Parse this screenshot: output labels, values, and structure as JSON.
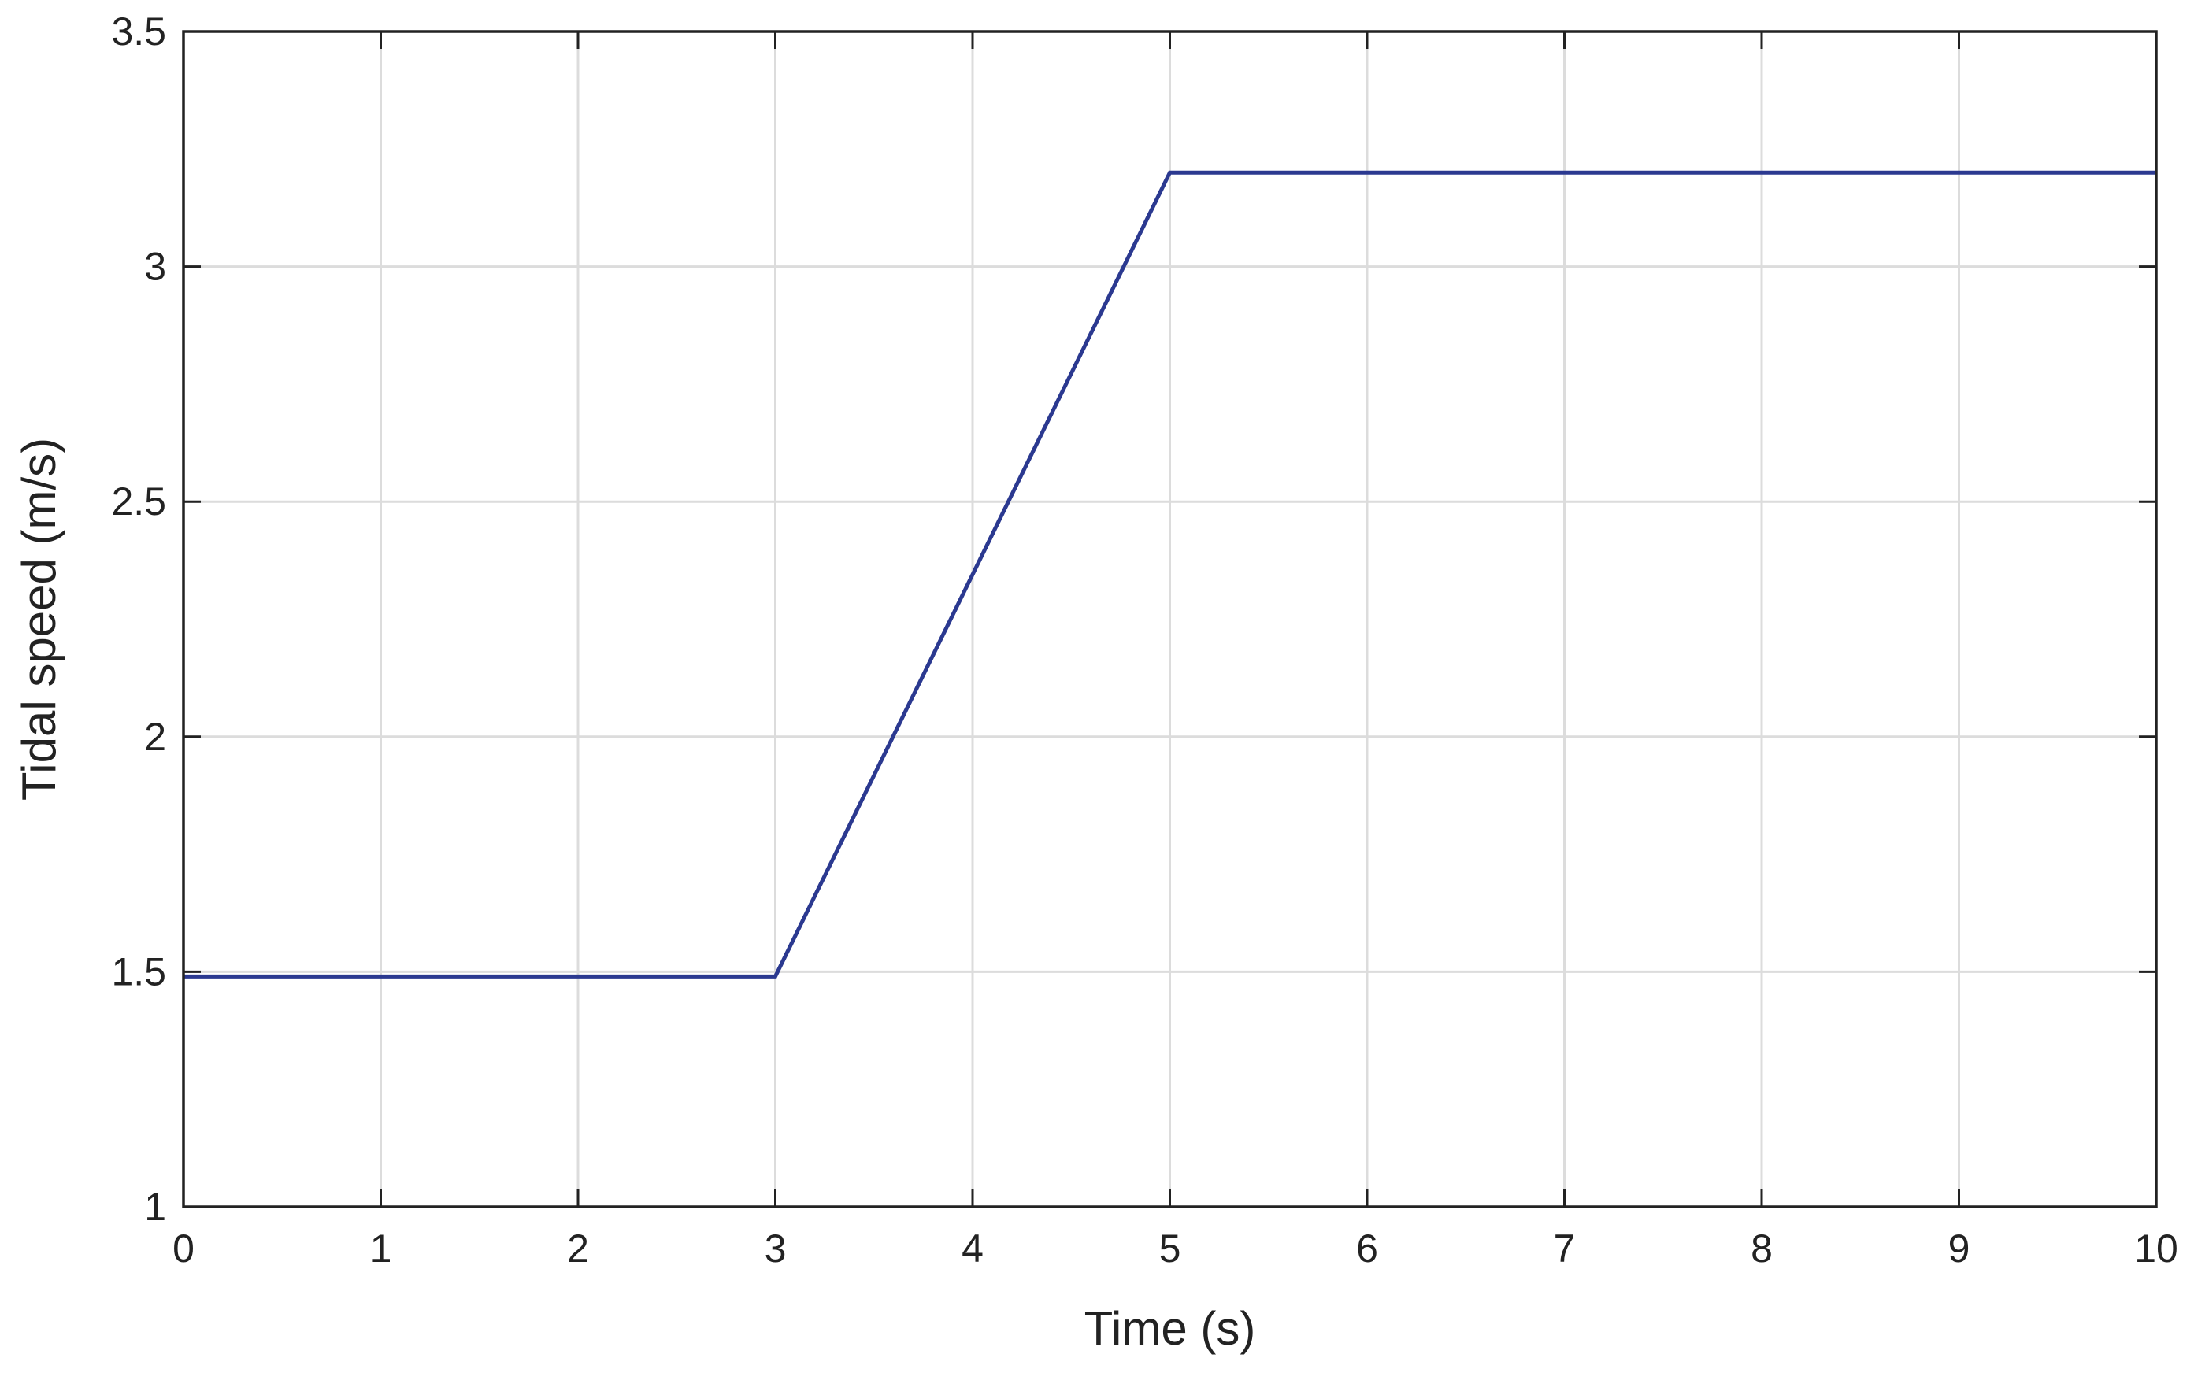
{
  "chart_data": {
    "type": "line",
    "title": "",
    "xlabel": "Time (s)",
    "ylabel": "Tidal speed (m/s)",
    "xlim": [
      0,
      10
    ],
    "ylim": [
      1,
      3.5
    ],
    "xticks": [
      0,
      1,
      2,
      3,
      4,
      5,
      6,
      7,
      8,
      9,
      10
    ],
    "yticks": [
      1,
      1.5,
      2,
      2.5,
      3,
      3.5
    ],
    "xtick_labels": [
      "0",
      "1",
      "2",
      "3",
      "4",
      "5",
      "6",
      "7",
      "8",
      "9",
      "10"
    ],
    "ytick_labels": [
      "1",
      "1.5",
      "2",
      "2.5",
      "3",
      "3.5"
    ],
    "grid": true,
    "legend": "none",
    "series": [
      {
        "color": "#2b3990",
        "x": [
          0,
          3,
          5,
          10
        ],
        "y": [
          1.49,
          1.49,
          3.2,
          3.2
        ]
      }
    ]
  }
}
